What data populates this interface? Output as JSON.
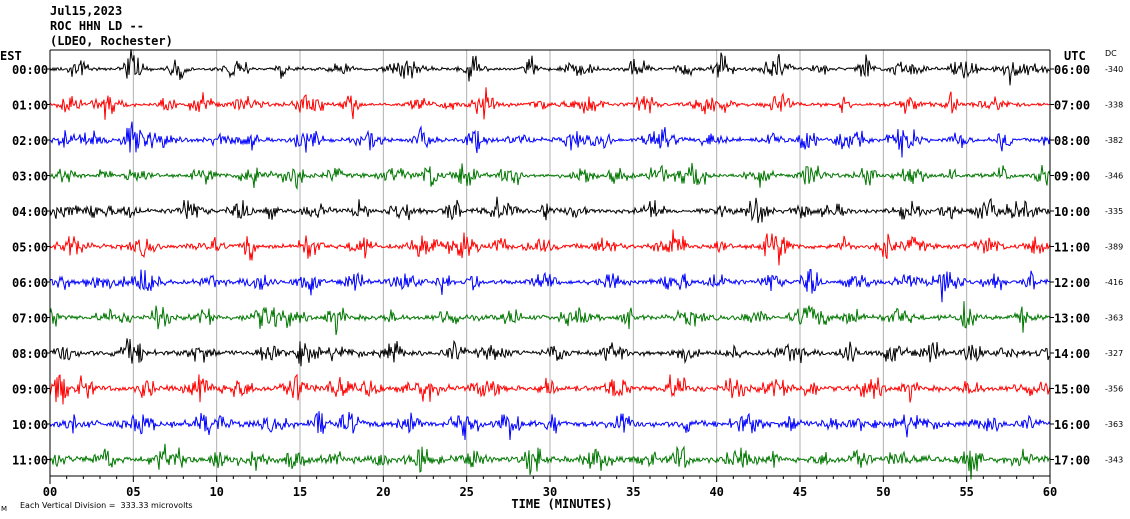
{
  "header": {
    "date": "Jul15,2023",
    "station": "ROC HHN LD --",
    "network": "(LDEO, Rochester)"
  },
  "left_axis_label": "EST",
  "right_axis_label": "UTC",
  "dc_label": "DC",
  "footer": {
    "scale_note": "Each Vertical Division =  333.33 microvolts",
    "corner_mark": "M"
  },
  "colors": [
    "#000000",
    "#ff0000",
    "#0000ff",
    "#007700"
  ],
  "chart_data": {
    "type": "line",
    "title": "",
    "xlabel": "TIME (MINUTES)",
    "ylabel": "",
    "xlim": [
      0,
      60
    ],
    "x_ticks": [
      "00",
      "05",
      "10",
      "15",
      "20",
      "25",
      "30",
      "35",
      "40",
      "45",
      "50",
      "55",
      "60"
    ],
    "grid": true,
    "series": [
      {
        "est": "00:00",
        "utc": "06:00",
        "dc": "-340",
        "color": "#000000"
      },
      {
        "est": "01:00",
        "utc": "07:00",
        "dc": "-338",
        "color": "#ff0000"
      },
      {
        "est": "02:00",
        "utc": "08:00",
        "dc": "-382",
        "color": "#0000ff"
      },
      {
        "est": "03:00",
        "utc": "09:00",
        "dc": "-346",
        "color": "#007700"
      },
      {
        "est": "04:00",
        "utc": "10:00",
        "dc": "-335",
        "color": "#000000"
      },
      {
        "est": "05:00",
        "utc": "11:00",
        "dc": "-389",
        "color": "#ff0000"
      },
      {
        "est": "06:00",
        "utc": "12:00",
        "dc": "-416",
        "color": "#0000ff"
      },
      {
        "est": "07:00",
        "utc": "13:00",
        "dc": "-363",
        "color": "#007700"
      },
      {
        "est": "08:00",
        "utc": "14:00",
        "dc": "-327",
        "color": "#000000"
      },
      {
        "est": "09:00",
        "utc": "15:00",
        "dc": "-356",
        "color": "#ff0000"
      },
      {
        "est": "10:00",
        "utc": "16:00",
        "dc": "-363",
        "color": "#0000ff"
      },
      {
        "est": "11:00",
        "utc": "17:00",
        "dc": "-343",
        "color": "#007700"
      }
    ]
  }
}
